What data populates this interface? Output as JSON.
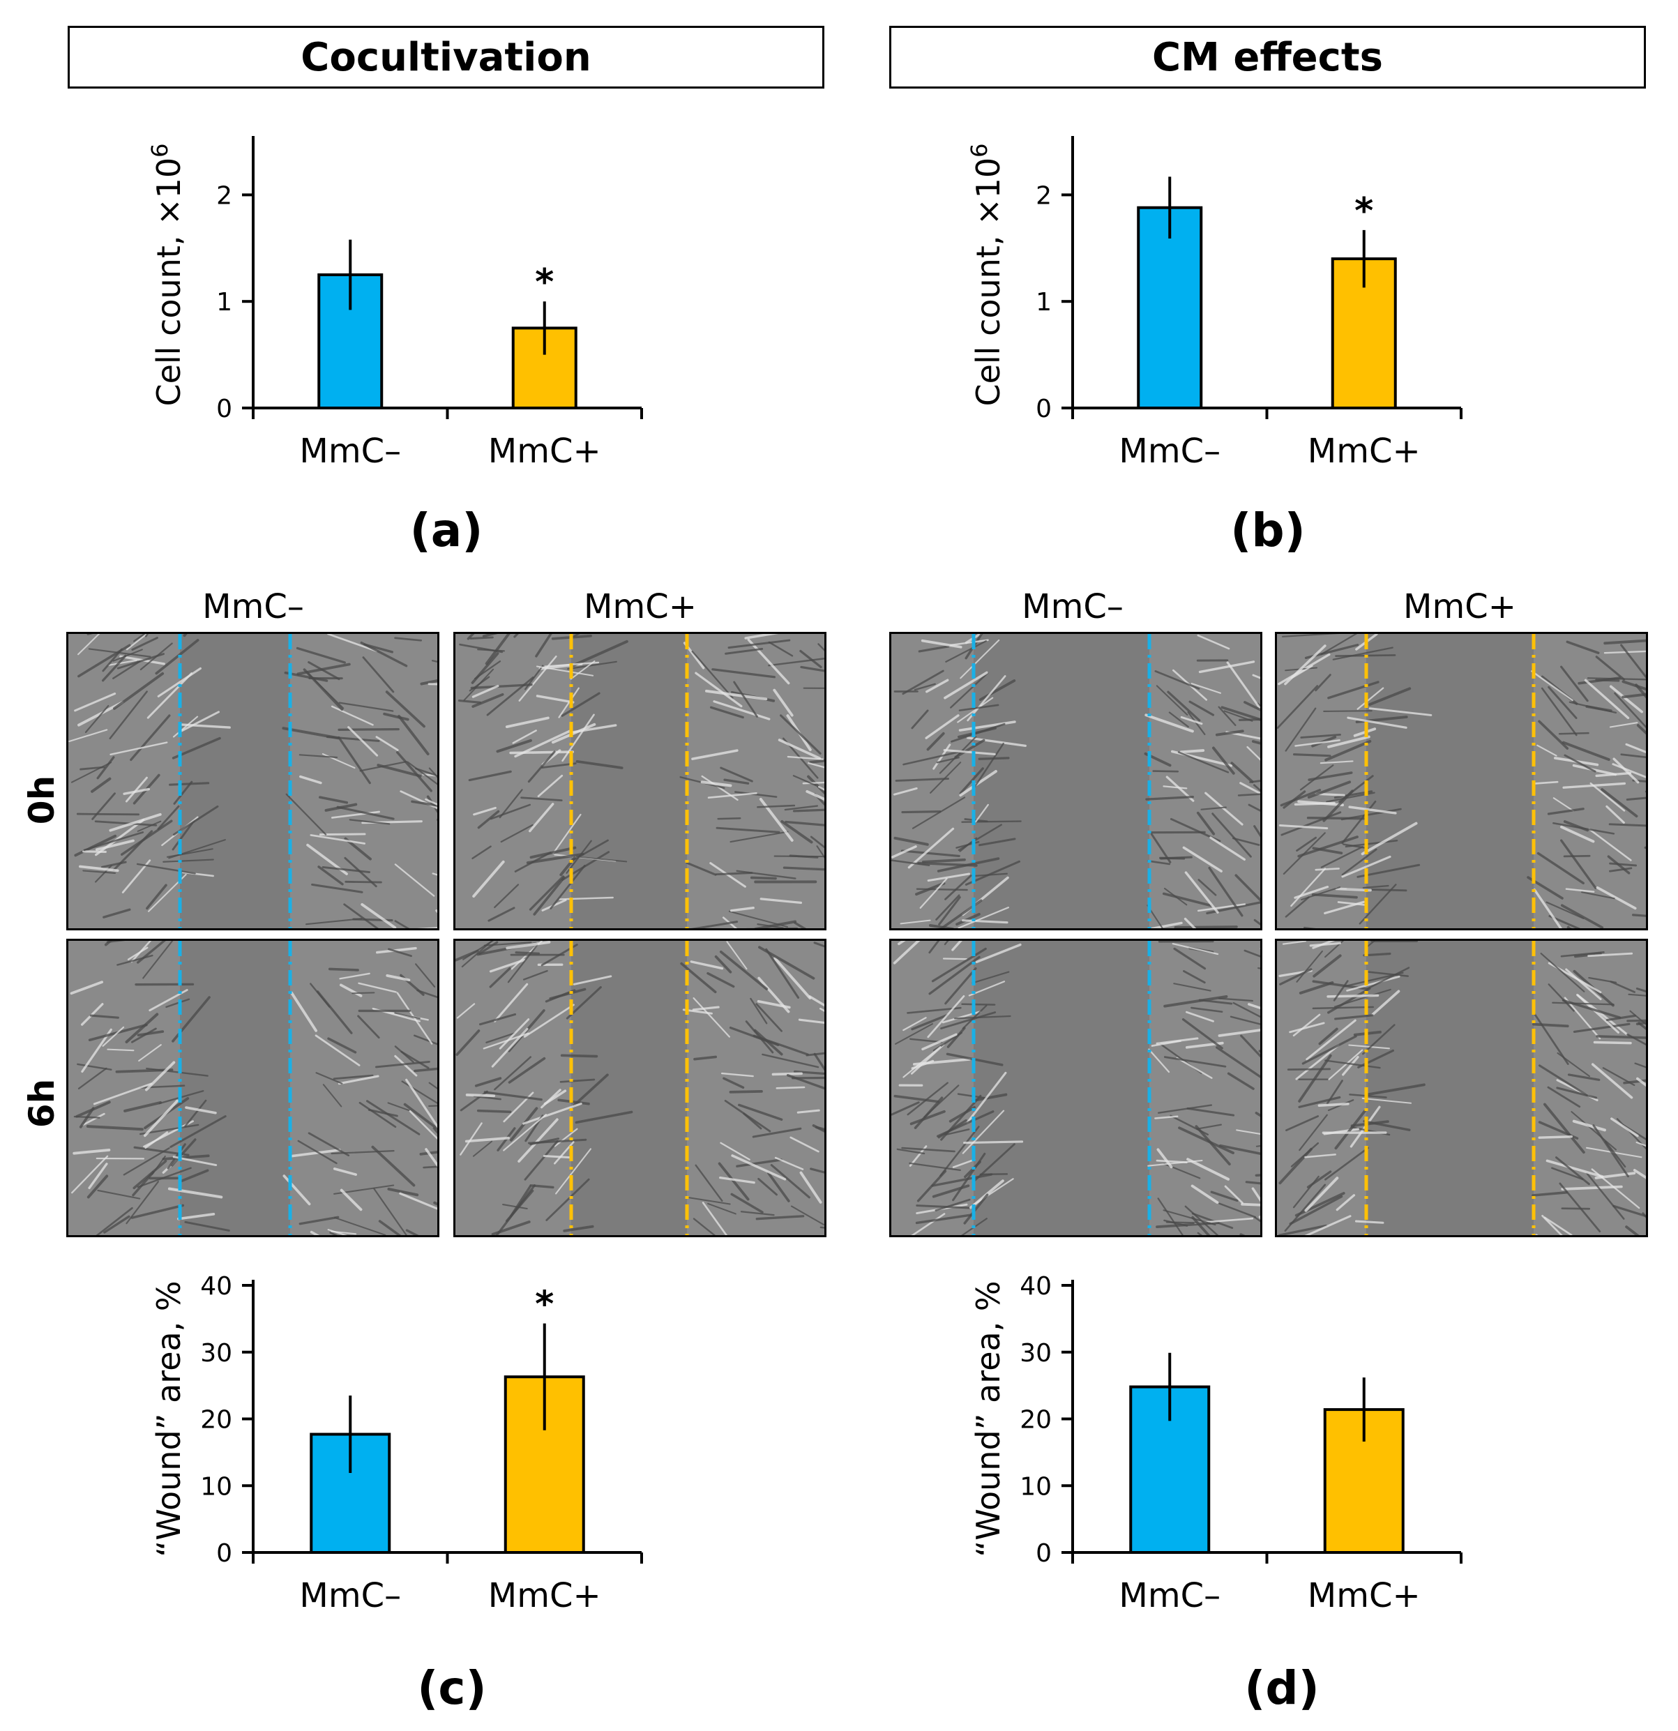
{
  "sections": {
    "left_title": "Cocultivation",
    "right_title": "CM effects"
  },
  "panel_labels": {
    "a": "(a)",
    "b": "(b)",
    "c": "(c)",
    "d": "(d)"
  },
  "image_grid": {
    "column_labels": [
      "MmC–",
      "MmC+",
      "MmC–",
      "MmC+"
    ],
    "row_labels": [
      "0h",
      "6h"
    ],
    "line_colors": [
      "#1ab0e6",
      "#ffc107",
      "#1ab0e6",
      "#ffc107"
    ]
  },
  "colors": {
    "mmc_minus": "#00b0f0",
    "mmc_plus": "#ffc000"
  },
  "chart_data": [
    {
      "id": "a",
      "type": "bar",
      "categories": [
        "MmC–",
        "MmC+"
      ],
      "values": [
        1.25,
        0.75
      ],
      "errors": [
        0.33,
        0.25
      ],
      "significance": [
        "",
        "*"
      ],
      "ylabel": "Cell count, ×10",
      "ylabel_sup": "6",
      "ylim": [
        0,
        2.5
      ],
      "yticks": [
        0,
        1,
        2
      ]
    },
    {
      "id": "b",
      "type": "bar",
      "categories": [
        "MmC–",
        "MmC+"
      ],
      "values": [
        1.88,
        1.4
      ],
      "errors": [
        0.29,
        0.27
      ],
      "significance": [
        "",
        "*"
      ],
      "ylabel": "Cell count, ×10",
      "ylabel_sup": "6",
      "ylim": [
        0,
        2.5
      ],
      "yticks": [
        0,
        1,
        2
      ]
    },
    {
      "id": "c",
      "type": "bar",
      "categories": [
        "MmC–",
        "MmC+"
      ],
      "values": [
        17.7,
        26.3
      ],
      "errors": [
        5.8,
        8.0
      ],
      "significance": [
        "",
        "*"
      ],
      "ylabel": "“Wound” area, %",
      "ylabel_sup": "",
      "ylim": [
        0,
        40
      ],
      "yticks": [
        0,
        10,
        20,
        30,
        40
      ]
    },
    {
      "id": "d",
      "type": "bar",
      "categories": [
        "MmC–",
        "MmC+"
      ],
      "values": [
        24.8,
        21.4
      ],
      "errors": [
        5.1,
        4.8
      ],
      "significance": [
        "",
        ""
      ],
      "ylabel": "“Wound” area, %",
      "ylabel_sup": "",
      "ylim": [
        0,
        40
      ],
      "yticks": [
        0,
        10,
        20,
        30,
        40
      ]
    }
  ]
}
